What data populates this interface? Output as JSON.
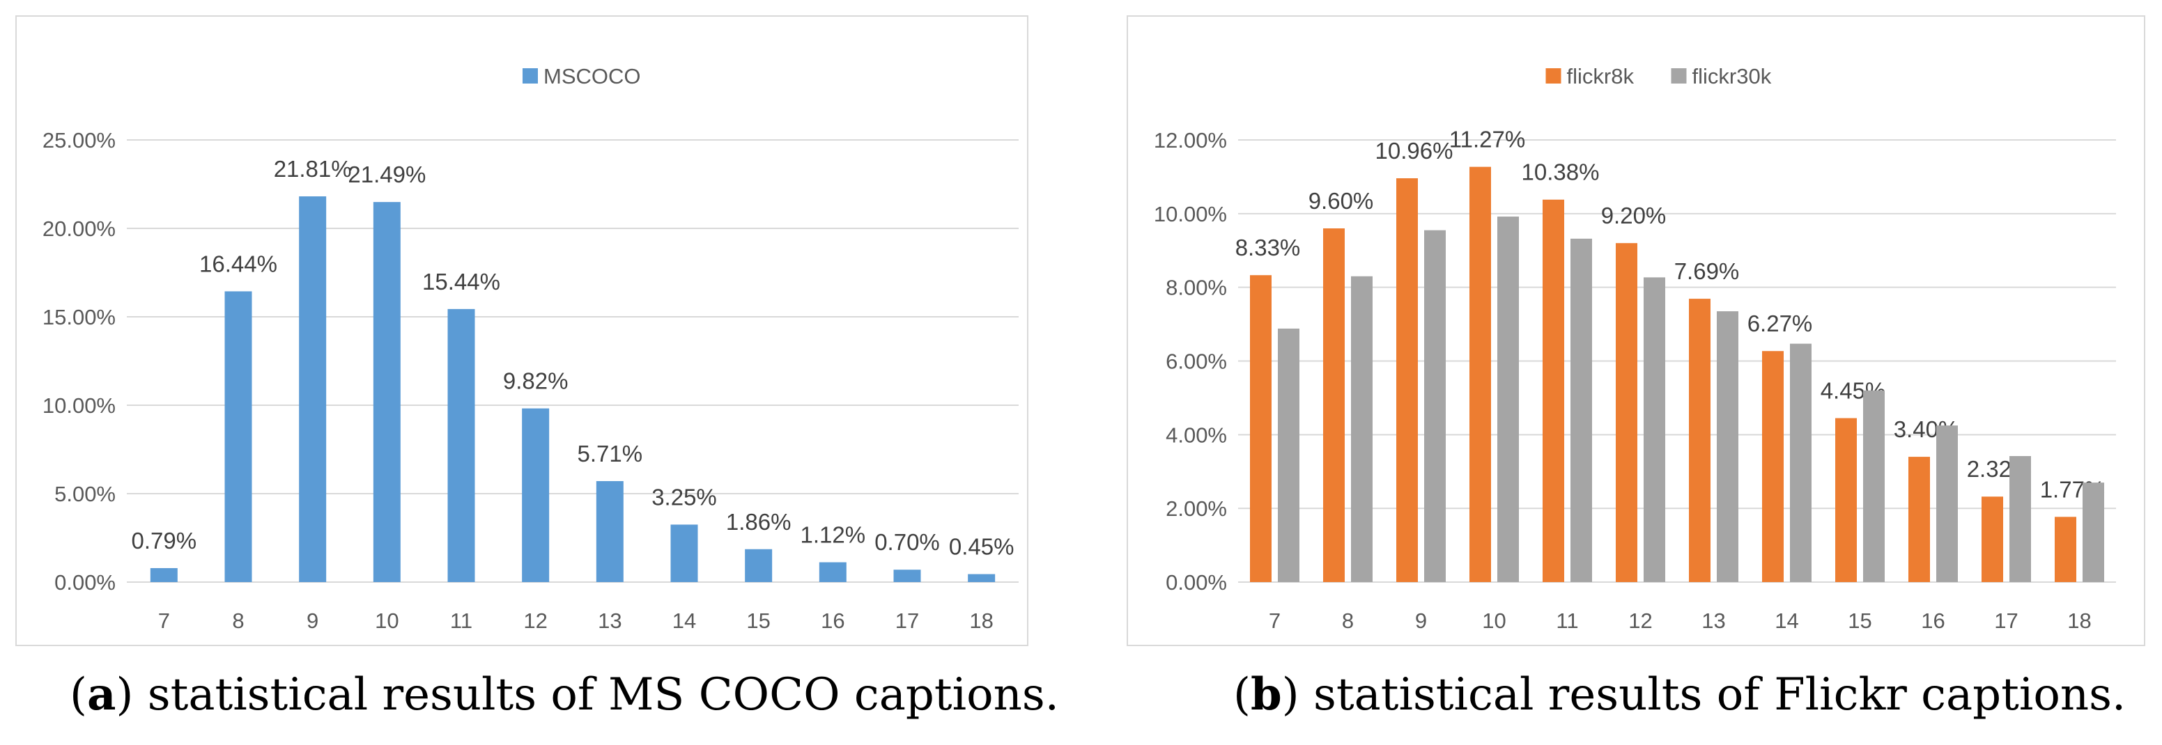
{
  "colors": {
    "mscoco": "#5b9bd5",
    "flickr8k": "#ed7d31",
    "flickr30k": "#a5a5a5",
    "gridline": "#d9d9d9",
    "axis_text": "#595959",
    "label_text": "#404040"
  },
  "chart_data": [
    {
      "type": "bar",
      "title": "",
      "xlabel": "",
      "ylabel": "",
      "categories": [
        "7",
        "8",
        "9",
        "10",
        "11",
        "12",
        "13",
        "14",
        "15",
        "16",
        "17",
        "18"
      ],
      "ylim": [
        0,
        25
      ],
      "yticks": [
        "0.00%",
        "5.00%",
        "10.00%",
        "15.00%",
        "20.00%",
        "25.00%"
      ],
      "grid": true,
      "legend_position": "top",
      "series": [
        {
          "name": "MSCOCO",
          "values": [
            0.79,
            16.44,
            21.81,
            21.49,
            15.44,
            9.82,
            5.71,
            3.25,
            1.86,
            1.12,
            0.7,
            0.45
          ],
          "labels": [
            "0.79%",
            "16.44%",
            "21.81%",
            "21.49%",
            "15.44%",
            "9.82%",
            "5.71%",
            "3.25%",
            "1.86%",
            "1.12%",
            "0.70%",
            "0.45%"
          ]
        }
      ]
    },
    {
      "type": "bar",
      "title": "",
      "xlabel": "",
      "ylabel": "",
      "categories": [
        "7",
        "8",
        "9",
        "10",
        "11",
        "12",
        "13",
        "14",
        "15",
        "16",
        "17",
        "18"
      ],
      "ylim": [
        0,
        12
      ],
      "yticks": [
        "0.00%",
        "2.00%",
        "4.00%",
        "6.00%",
        "8.00%",
        "10.00%",
        "12.00%"
      ],
      "grid": true,
      "legend_position": "top",
      "series": [
        {
          "name": "flickr8k",
          "values": [
            8.33,
            9.6,
            10.96,
            11.27,
            10.38,
            9.2,
            7.69,
            6.27,
            4.45,
            3.4,
            2.32,
            1.77
          ],
          "labels": [
            "8.33%",
            "9.60%",
            "10.96%",
            "11.27%",
            "10.38%",
            "9.20%",
            "7.69%",
            "6.27%",
            "4.45%",
            "3.40%",
            "2.32%",
            "1.77%"
          ]
        },
        {
          "name": "flickr30k",
          "values": [
            6.88,
            8.3,
            9.55,
            9.92,
            9.32,
            8.27,
            7.35,
            6.47,
            5.2,
            4.25,
            3.42,
            2.7
          ],
          "labels": []
        }
      ]
    }
  ],
  "captions": {
    "a": {
      "tag": "a",
      "text": " statistical results of MS COCO captions."
    },
    "b": {
      "tag": "b",
      "text": " statistical results of Flickr captions."
    }
  }
}
